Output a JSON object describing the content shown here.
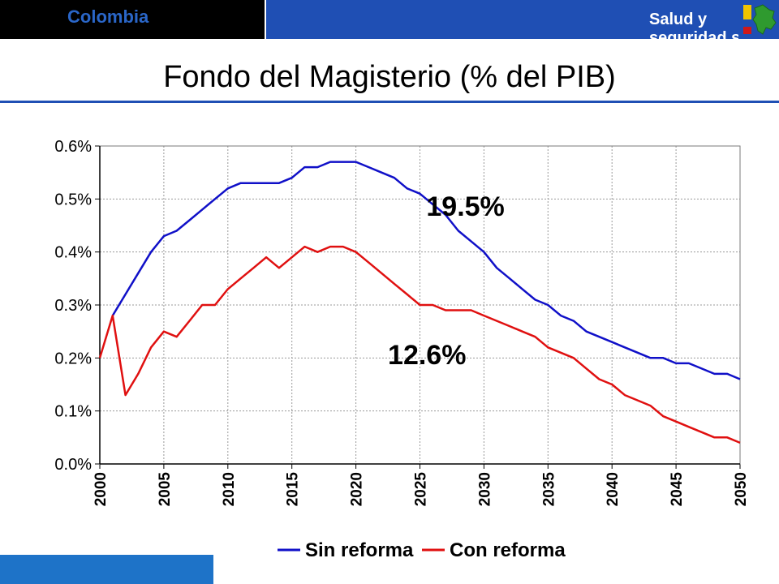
{
  "header": {
    "country": "Colombia",
    "section": "Salud y seguridad social"
  },
  "colors": {
    "header_dark": "#000000",
    "header_blue": "#1f4fb4",
    "accent_text": "#2a66c8",
    "sin_reforma": "#1010c8",
    "con_reforma": "#e01010"
  },
  "logo": {
    "icon": "colombia-map-logo-icon"
  },
  "chart_data": {
    "type": "line",
    "title": "Fondo del Magisterio (% del PIB)",
    "xlabel": "",
    "ylabel": "",
    "xlim": [
      2000,
      2050
    ],
    "ylim": [
      0,
      0.6
    ],
    "x_ticks": [
      "2000",
      "2005",
      "2010",
      "2015",
      "2020",
      "2025",
      "2030",
      "2035",
      "2040",
      "2045",
      "2050"
    ],
    "y_ticks": [
      "0.0%",
      "0.1%",
      "0.2%",
      "0.3%",
      "0.4%",
      "0.5%",
      "0.6%"
    ],
    "grid": true,
    "legend": "bottom",
    "x": [
      2000,
      2001,
      2002,
      2003,
      2004,
      2005,
      2006,
      2007,
      2008,
      2009,
      2010,
      2011,
      2012,
      2013,
      2014,
      2015,
      2016,
      2017,
      2018,
      2019,
      2020,
      2021,
      2022,
      2023,
      2024,
      2025,
      2026,
      2027,
      2028,
      2029,
      2030,
      2031,
      2032,
      2033,
      2034,
      2035,
      2036,
      2037,
      2038,
      2039,
      2040,
      2041,
      2042,
      2043,
      2044,
      2045,
      2046,
      2047,
      2048,
      2049,
      2050
    ],
    "series": [
      {
        "name": "Sin reforma",
        "color": "#1010c8",
        "values": [
          null,
          0.28,
          0.32,
          0.36,
          0.4,
          0.43,
          0.44,
          0.46,
          0.48,
          0.5,
          0.52,
          0.53,
          0.53,
          0.53,
          0.53,
          0.54,
          0.56,
          0.56,
          0.57,
          0.57,
          0.57,
          0.56,
          0.55,
          0.54,
          0.52,
          0.51,
          0.49,
          0.47,
          0.44,
          0.42,
          0.4,
          0.37,
          0.35,
          0.33,
          0.31,
          0.3,
          0.28,
          0.27,
          0.25,
          0.24,
          0.23,
          0.22,
          0.21,
          0.2,
          0.2,
          0.19,
          0.19,
          0.18,
          0.17,
          0.17,
          0.16
        ]
      },
      {
        "name": "Con reforma",
        "color": "#e01010",
        "values": [
          0.2,
          0.28,
          0.13,
          0.17,
          0.22,
          0.25,
          0.24,
          0.27,
          0.3,
          0.3,
          0.33,
          0.35,
          0.37,
          0.39,
          0.37,
          0.39,
          0.41,
          0.4,
          0.41,
          0.41,
          0.4,
          0.38,
          0.36,
          0.34,
          0.32,
          0.3,
          0.3,
          0.29,
          0.29,
          0.29,
          0.28,
          0.27,
          0.26,
          0.25,
          0.24,
          0.22,
          0.21,
          0.2,
          0.18,
          0.16,
          0.15,
          0.13,
          0.12,
          0.11,
          0.09,
          0.08,
          0.07,
          0.06,
          0.05,
          0.05,
          0.04
        ]
      }
    ],
    "annotations": [
      {
        "text": "19.5%",
        "x": 2025.5,
        "y": 0.49
      },
      {
        "text": "12.6%",
        "x": 2022.5,
        "y": 0.21
      }
    ]
  }
}
